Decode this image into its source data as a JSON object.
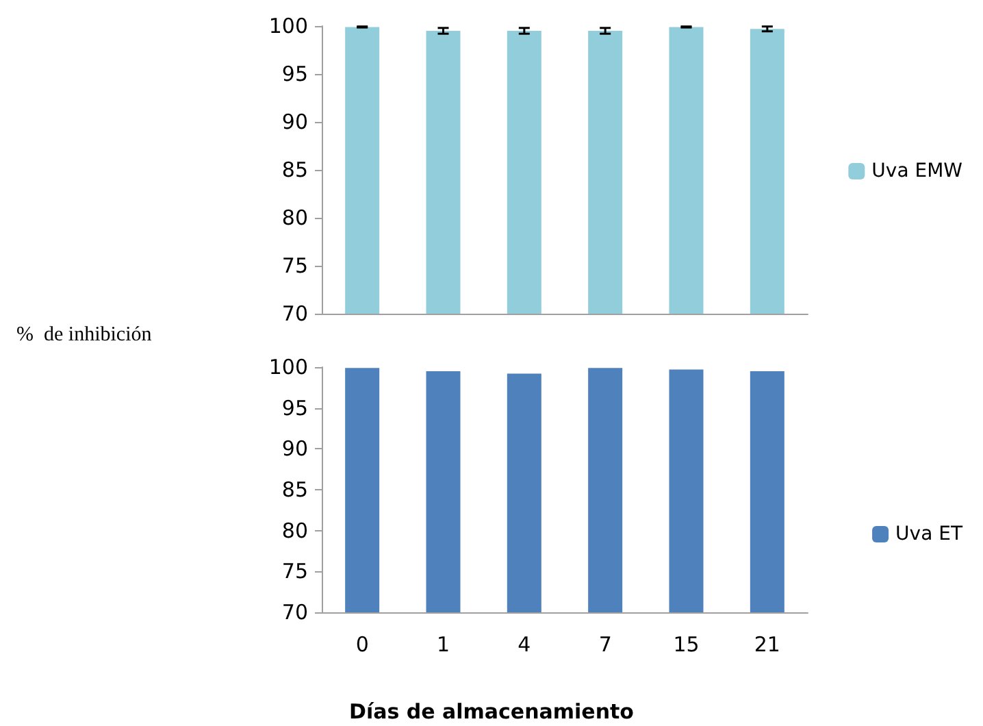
{
  "chart_data": [
    {
      "type": "bar",
      "ylabel": "%  de inhibición",
      "categories": [
        "0",
        "1",
        "4",
        "7",
        "15",
        "21"
      ],
      "tick_labels": "y",
      "grid": false,
      "legend": "right",
      "ylim": [
        70,
        100
      ],
      "yticks": [
        70,
        75,
        80,
        85,
        90,
        95,
        100
      ],
      "series": [
        {
          "name": "Uva EMW",
          "color": "#92cddc",
          "values": [
            99.9,
            99.5,
            99.5,
            99.5,
            99.9,
            99.7
          ],
          "errors": [
            0.05,
            0.3,
            0.3,
            0.3,
            0.05,
            0.25
          ]
        }
      ]
    },
    {
      "type": "bar",
      "xlabel": "Días de almacenamiento",
      "categories": [
        "0",
        "1",
        "4",
        "7",
        "15",
        "21"
      ],
      "grid": false,
      "legend": "right",
      "ylim": [
        70,
        100
      ],
      "yticks": [
        70,
        75,
        80,
        85,
        90,
        95,
        100
      ],
      "series": [
        {
          "name": "Uva ET",
          "color": "#4f81bd",
          "values": [
            99.9,
            99.5,
            99.2,
            99.9,
            99.7,
            99.5
          ]
        }
      ]
    }
  ]
}
